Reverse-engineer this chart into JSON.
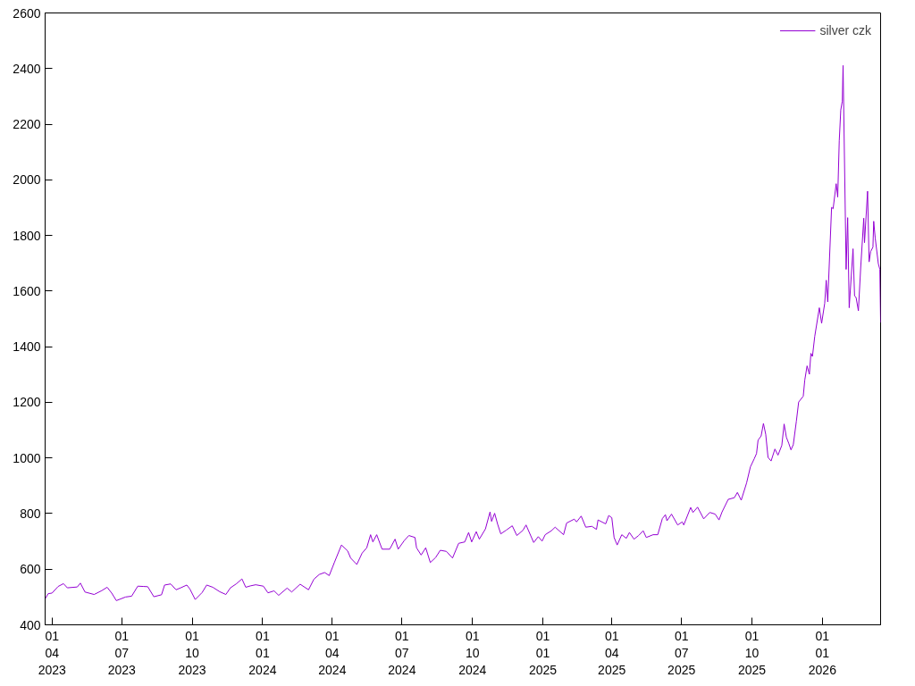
{
  "chart_data": {
    "type": "line",
    "x": [
      "2023-03-23",
      "2023-03-27",
      "2023-04-01",
      "2023-04-09",
      "2023-04-16",
      "2023-04-21",
      "2023-05-04",
      "2023-05-08",
      "2023-05-14",
      "2023-05-26",
      "2023-06-05",
      "2023-06-12",
      "2023-06-18",
      "2023-06-24",
      "2023-07-06",
      "2023-07-14",
      "2023-07-22",
      "2023-07-29",
      "2023-08-04",
      "2023-08-12",
      "2023-08-22",
      "2023-08-26",
      "2023-09-03",
      "2023-09-10",
      "2023-09-16",
      "2023-09-24",
      "2023-09-28",
      "2023-10-05",
      "2023-10-14",
      "2023-10-20",
      "2023-10-28",
      "2023-11-06",
      "2023-11-14",
      "2023-11-20",
      "2023-11-28",
      "2023-12-05",
      "2023-12-10",
      "2023-12-16",
      "2023-12-23",
      "2024-01-02",
      "2024-01-08",
      "2024-01-16",
      "2024-01-22",
      "2024-02-02",
      "2024-02-08",
      "2024-02-19",
      "2024-03-01",
      "2024-03-08",
      "2024-03-15",
      "2024-03-22",
      "2024-03-28",
      "2024-04-04",
      "2024-04-13",
      "2024-04-21",
      "2024-04-25",
      "2024-05-03",
      "2024-05-10",
      "2024-05-16",
      "2024-05-21",
      "2024-05-24",
      "2024-05-29",
      "2024-06-05",
      "2024-06-15",
      "2024-06-22",
      "2024-06-26",
      "2024-07-04",
      "2024-07-10",
      "2024-07-18",
      "2024-07-20",
      "2024-07-26",
      "2024-08-01",
      "2024-08-07",
      "2024-08-14",
      "2024-08-20",
      "2024-08-28",
      "2024-09-05",
      "2024-09-13",
      "2024-09-21",
      "2024-09-26",
      "2024-09-30",
      "2024-10-06",
      "2024-10-10",
      "2024-10-18",
      "2024-10-24",
      "2024-10-26",
      "2024-10-30",
      "2024-11-03",
      "2024-11-07",
      "2024-11-14",
      "2024-11-22",
      "2024-11-28",
      "2024-12-06",
      "2024-12-10",
      "2024-12-20",
      "2024-12-26",
      "2024-12-31",
      "2025-01-04",
      "2025-01-12",
      "2025-01-17",
      "2025-01-28",
      "2025-02-01",
      "2025-02-11",
      "2025-02-14",
      "2025-02-20",
      "2025-02-26",
      "2025-03-06",
      "2025-03-12",
      "2025-03-14",
      "2025-03-24",
      "2025-03-28",
      "2025-04-01",
      "2025-04-04",
      "2025-04-08",
      "2025-04-14",
      "2025-04-20",
      "2025-04-24",
      "2025-04-30",
      "2025-05-06",
      "2025-05-12",
      "2025-05-16",
      "2025-05-25",
      "2025-05-31",
      "2025-06-06",
      "2025-06-10",
      "2025-06-12",
      "2025-06-18",
      "2025-06-26",
      "2025-07-02",
      "2025-07-04",
      "2025-07-13",
      "2025-07-16",
      "2025-07-22",
      "2025-07-30",
      "2025-08-07",
      "2025-08-14",
      "2025-08-19",
      "2025-08-23",
      "2025-08-31",
      "2025-09-08",
      "2025-09-12",
      "2025-09-17",
      "2025-09-24",
      "2025-09-29",
      "2025-10-04",
      "2025-10-07",
      "2025-10-09",
      "2025-10-13",
      "2025-10-16",
      "2025-10-19",
      "2025-10-22",
      "2025-10-26",
      "2025-10-31",
      "2025-11-04",
      "2025-11-09",
      "2025-11-12",
      "2025-11-15",
      "2025-11-18",
      "2025-11-21",
      "2025-11-24",
      "2025-11-28",
      "2025-12-01",
      "2025-12-07",
      "2025-12-09",
      "2025-12-12",
      "2025-12-15",
      "2025-12-17",
      "2025-12-19",
      "2025-12-22",
      "2025-12-28",
      "2025-12-31",
      "2026-01-04",
      "2026-01-06",
      "2026-01-08",
      "2026-01-13",
      "2026-01-15",
      "2026-01-19",
      "2026-01-21",
      "2026-01-23",
      "2026-01-25",
      "2026-01-27",
      "2026-01-28",
      "2026-02-01",
      "2026-02-03",
      "2026-02-05",
      "2026-02-10",
      "2026-02-12",
      "2026-02-14",
      "2026-02-17",
      "2026-02-20",
      "2026-02-24",
      "2026-02-25",
      "2026-03-01",
      "2026-03-03",
      "2026-03-05",
      "2026-03-08",
      "2026-03-09",
      "2026-03-11",
      "2026-03-15",
      "2026-03-17",
      "2026-03-18"
    ],
    "series": [
      {
        "name": "silver czk",
        "color": "#9400d3",
        "values": [
          493,
          512,
          514,
          538,
          548,
          533,
          536,
          550,
          518,
          509,
          523,
          535,
          514,
          487,
          500,
          503,
          539,
          538,
          537,
          501,
          508,
          543,
          547,
          526,
          533,
          543,
          529,
          491,
          516,
          543,
          535,
          519,
          509,
          533,
          548,
          565,
          535,
          540,
          544,
          539,
          515,
          522,
          506,
          532,
          518,
          546,
          526,
          564,
          581,
          588,
          577,
          626,
          687,
          666,
          640,
          617,
          658,
          677,
          724,
          698,
          724,
          672,
          672,
          708,
          672,
          703,
          721,
          714,
          677,
          651,
          677,
          624,
          642,
          668,
          664,
          640,
          693,
          698,
          732,
          698,
          735,
          708,
          745,
          806,
          772,
          801,
          761,
          727,
          740,
          756,
          721,
          740,
          759,
          696,
          717,
          701,
          724,
          738,
          751,
          724,
          766,
          780,
          770,
          791,
          751,
          754,
          743,
          777,
          763,
          793,
          785,
          714,
          687,
          724,
          711,
          732,
          708,
          721,
          738,
          714,
          724,
          724,
          782,
          796,
          774,
          798,
          759,
          770,
          759,
          822,
          804,
          823,
          781,
          804,
          798,
          777,
          806,
          851,
          857,
          876,
          848,
          910,
          968,
          997,
          1016,
          1064,
          1079,
          1124,
          1085,
          1002,
          989,
          1032,
          1010,
          1045,
          1122,
          1074,
          1053,
          1029,
          1048,
          1132,
          1201,
          1222,
          1280,
          1331,
          1301,
          1376,
          1365,
          1437,
          1540,
          1484,
          1556,
          1639,
          1561,
          1901,
          1896,
          1986,
          1938,
          2140,
          2251,
          2283,
          2411,
          1678,
          1864,
          1540,
          1752,
          1583,
          1577,
          1529,
          1683,
          1862,
          1774,
          1959,
          1705,
          1742,
          1758,
          1851,
          1790,
          1699,
          1678,
          1487
        ]
      }
    ],
    "xlim": [
      "2023-03-23",
      "2026-03-18"
    ],
    "xticks": [
      {
        "value": "2023-04-01",
        "label": "01\n04\n2023"
      },
      {
        "value": "2023-07-01",
        "label": "01\n07\n2023"
      },
      {
        "value": "2023-10-01",
        "label": "01\n10\n2023"
      },
      {
        "value": "2024-01-01",
        "label": "01\n01\n2024"
      },
      {
        "value": "2024-04-01",
        "label": "01\n04\n2024"
      },
      {
        "value": "2024-07-01",
        "label": "01\n07\n2024"
      },
      {
        "value": "2024-10-01",
        "label": "01\n10\n2024"
      },
      {
        "value": "2025-01-01",
        "label": "01\n01\n2025"
      },
      {
        "value": "2025-04-01",
        "label": "01\n04\n2025"
      },
      {
        "value": "2025-07-01",
        "label": "01\n07\n2025"
      },
      {
        "value": "2025-10-01",
        "label": "01\n10\n2025"
      },
      {
        "value": "2026-01-01",
        "label": "01\n01\n2026"
      }
    ],
    "ylim": [
      400,
      2600
    ],
    "yticks": [
      400,
      600,
      800,
      1000,
      1200,
      1400,
      1600,
      1800,
      2000,
      2200,
      2400,
      2600
    ],
    "legend": "top right",
    "grid": false
  }
}
